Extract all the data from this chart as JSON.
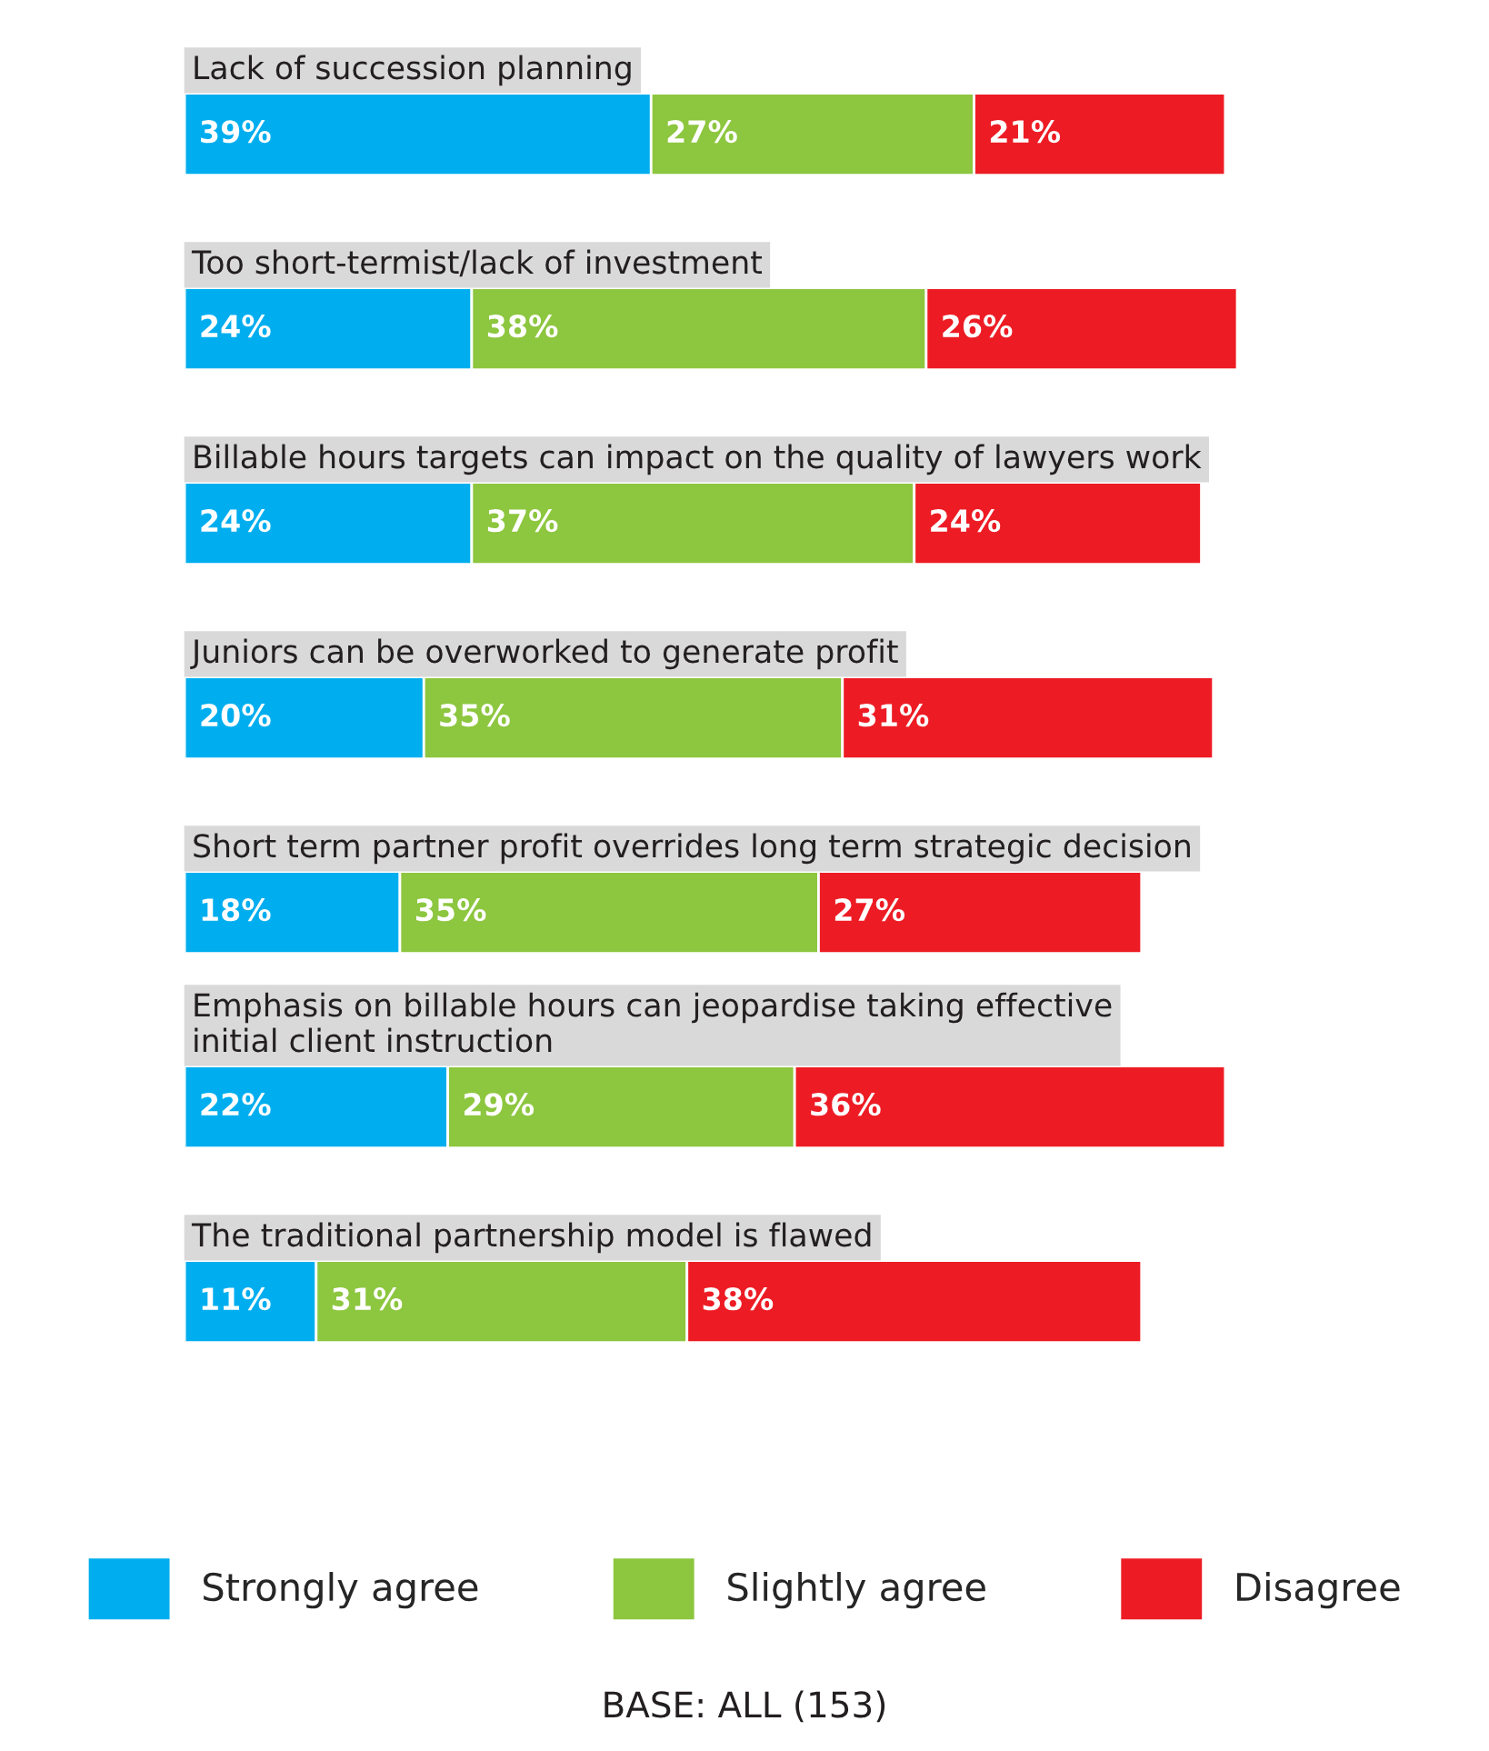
{
  "chart_data": {
    "type": "bar",
    "orientation": "horizontal",
    "stacked": true,
    "categories": [
      "Lack of succession planning",
      "Too short-termist/lack of investment",
      "Billable hours targets can impact on the quality of lawyers work",
      "Juniors can be overworked to generate profit",
      "Short term partner profit overrides long term strategic decision",
      "Emphasis on billable hours can jeopardise taking effective\ninitial client instruction",
      "The traditional partnership model is flawed"
    ],
    "series": [
      {
        "name": "Strongly agree",
        "color": "#00aeef",
        "values": [
          39,
          24,
          24,
          20,
          18,
          22,
          11
        ],
        "value_labels": [
          "39%",
          "24%",
          "24%",
          "20%",
          "18%",
          "22%",
          "11%"
        ]
      },
      {
        "name": "Slightly agree",
        "color": "#8dc63f",
        "values": [
          27,
          38,
          37,
          35,
          35,
          29,
          31
        ],
        "value_labels": [
          "27%",
          "38%",
          "37%",
          "35%",
          "35%",
          "29%",
          "31%"
        ]
      },
      {
        "name": "Disagree",
        "color": "#ed1c24",
        "values": [
          21,
          26,
          24,
          31,
          27,
          36,
          38
        ],
        "value_labels": [
          "21%",
          "26%",
          "24%",
          "31%",
          "27%",
          "36%",
          "38%"
        ]
      }
    ],
    "legend": "bottom",
    "annotations": [
      "BASE: ALL (153)"
    ]
  }
}
